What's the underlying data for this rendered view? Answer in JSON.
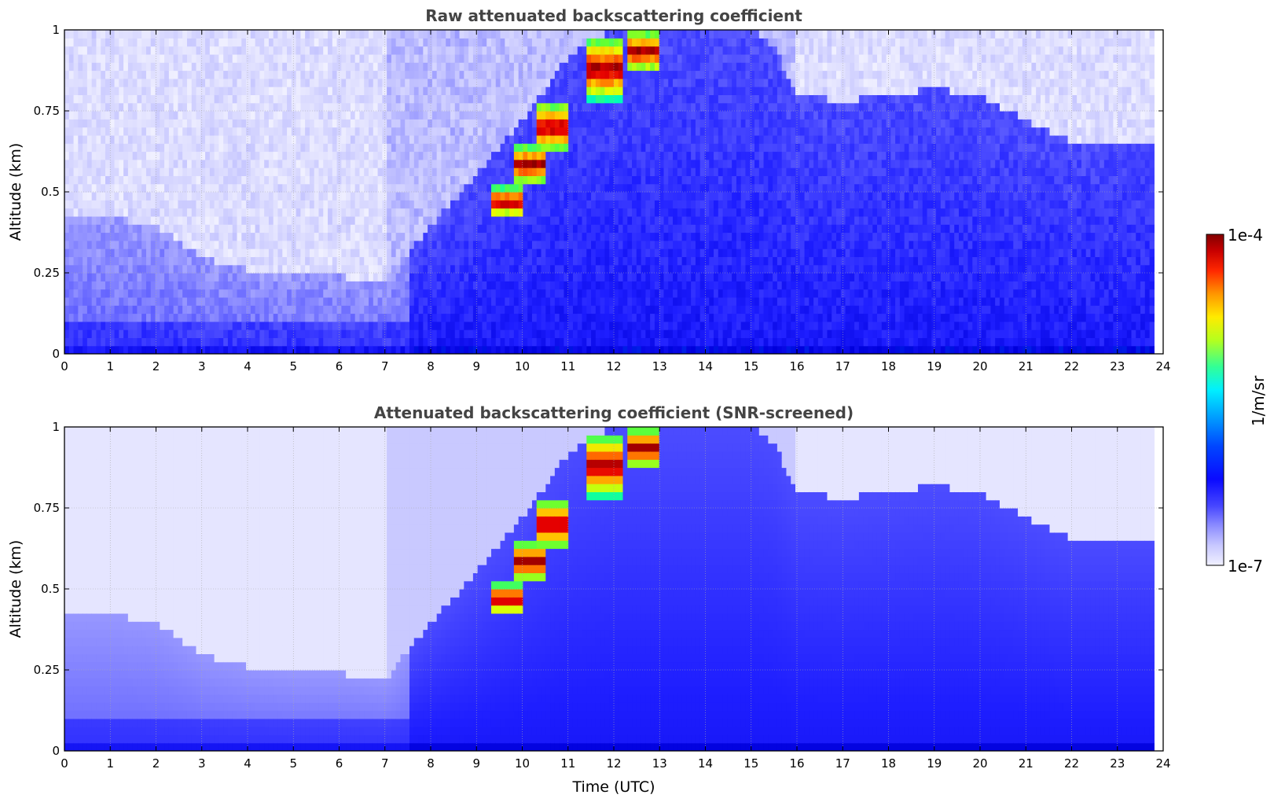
{
  "chart_data": [
    {
      "type": "heatmap",
      "title": "Raw attenuated backscattering coefficient",
      "xlabel": "",
      "ylabel": "Altitude (km)",
      "xlim": [
        0,
        24
      ],
      "ylim": [
        0,
        1
      ],
      "x_ticks": [
        "0",
        "1",
        "2",
        "3",
        "4",
        "5",
        "6",
        "7",
        "8",
        "9",
        "10",
        "11",
        "12",
        "13",
        "14",
        "15",
        "16",
        "17",
        "18",
        "19",
        "20",
        "21",
        "22",
        "23",
        "24"
      ],
      "y_ticks": [
        "0",
        "0.25",
        "0.5",
        "0.75",
        "1"
      ],
      "grid": true,
      "data_end_time": 23.8,
      "color_scale": "log",
      "features": {
        "boundary_layer_top_km": [
          [
            0,
            0.42
          ],
          [
            1,
            0.42
          ],
          [
            2,
            0.4
          ],
          [
            3,
            0.3
          ],
          [
            4,
            0.26
          ],
          [
            5,
            0.24
          ],
          [
            6,
            0.24
          ],
          [
            7,
            0.22
          ],
          [
            8,
            0.4
          ],
          [
            9,
            0.55
          ],
          [
            10,
            0.72
          ],
          [
            11,
            0.92
          ],
          [
            12,
            1.0
          ],
          [
            13,
            1.0
          ],
          [
            14,
            1.0
          ],
          [
            15,
            1.0
          ],
          [
            15.5,
            0.95
          ],
          [
            16,
            0.8
          ],
          [
            17,
            0.78
          ],
          [
            18,
            0.8
          ],
          [
            19,
            0.82
          ],
          [
            20,
            0.8
          ],
          [
            21,
            0.72
          ],
          [
            22,
            0.66
          ],
          [
            23,
            0.66
          ],
          [
            23.8,
            0.66
          ]
        ],
        "cloud_cells": [
          {
            "time": 9.7,
            "alt_bottom": 0.42,
            "alt_top": 0.52
          },
          {
            "time": 10.2,
            "alt_bottom": 0.52,
            "alt_top": 0.65
          },
          {
            "time": 10.7,
            "alt_bottom": 0.62,
            "alt_top": 0.78
          },
          {
            "time": 11.8,
            "alt_bottom": 0.78,
            "alt_top": 0.98
          },
          {
            "time": 12.6,
            "alt_bottom": 0.87,
            "alt_top": 1.0
          }
        ]
      }
    },
    {
      "type": "heatmap",
      "title": "Attenuated backscattering coefficient (SNR-screened)",
      "xlabel": "Time (UTC)",
      "ylabel": "Altitude (km)",
      "xlim": [
        0,
        24
      ],
      "ylim": [
        0,
        1
      ],
      "x_ticks": [
        "0",
        "1",
        "2",
        "3",
        "4",
        "5",
        "6",
        "7",
        "8",
        "9",
        "10",
        "11",
        "12",
        "13",
        "14",
        "15",
        "16",
        "17",
        "18",
        "19",
        "20",
        "21",
        "22",
        "23",
        "24"
      ],
      "y_ticks": [
        "0",
        "0.25",
        "0.5",
        "0.75",
        "1"
      ],
      "grid": true,
      "data_end_time": 23.8,
      "color_scale": "log"
    }
  ],
  "colorbar": {
    "max_label": "1e-4",
    "min_label": "1e-7",
    "unit_label": "1/m/sr",
    "max_value": 0.0001,
    "min_value": 1e-07,
    "colormap": "jet",
    "stops": [
      "#f0f0ff",
      "#c8c8ff",
      "#8c8cff",
      "#5050ff",
      "#1e1eff",
      "#0000dc",
      "#0064ff",
      "#00c8ff",
      "#00ffb4",
      "#64ff32",
      "#e6ff00",
      "#ffc800",
      "#ff6400",
      "#e60000",
      "#8c0000"
    ]
  }
}
